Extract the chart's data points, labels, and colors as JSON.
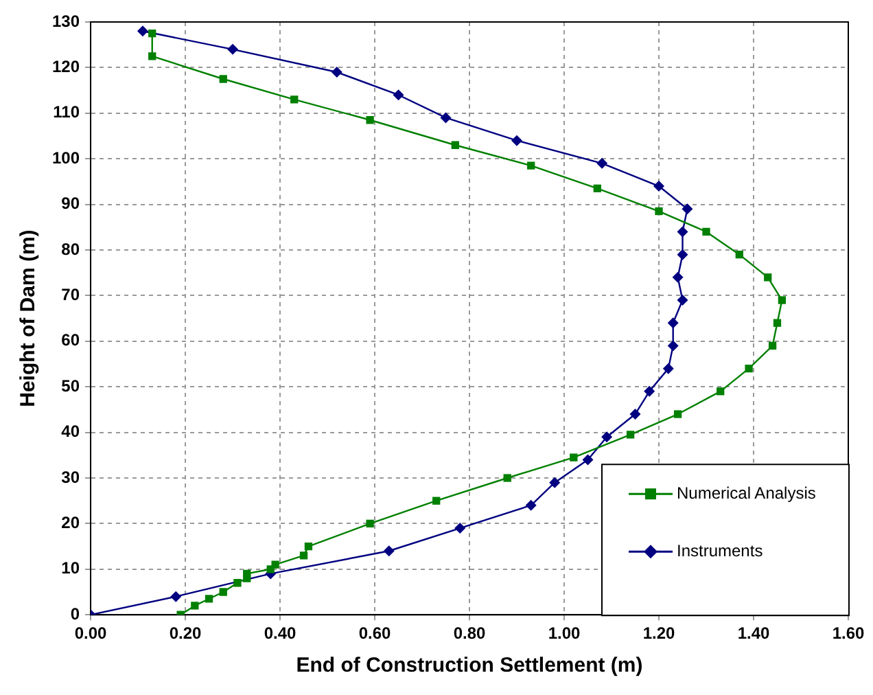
{
  "chart_data": {
    "type": "line",
    "xlabel": "End of Construction Settlement (m)",
    "ylabel": "Height of Dam (m)",
    "xlim": [
      0,
      1.6
    ],
    "xticks": [
      {
        "value": 0,
        "label": "0.00"
      },
      {
        "value": 0.2,
        "label": "0.20"
      },
      {
        "value": 0.4,
        "label": "0.40"
      },
      {
        "value": 0.6,
        "label": "0.60"
      },
      {
        "value": 0.8,
        "label": "0.80"
      },
      {
        "value": 1,
        "label": "1.00"
      },
      {
        "value": 1.2,
        "label": "1.20"
      },
      {
        "value": 1.4,
        "label": "1.40"
      },
      {
        "value": 1.6,
        "label": "1.60"
      }
    ],
    "ylim": [
      0,
      130
    ],
    "yticks": [
      0,
      10,
      20,
      30,
      40,
      50,
      60,
      70,
      80,
      90,
      100,
      110,
      120,
      130
    ],
    "grid": true,
    "legend": "bottom right",
    "line_style": "solid",
    "series": [
      {
        "name": "Numerical Analysis",
        "color": "#008000",
        "marker": "square",
        "x": [
          0.19,
          0.22,
          0.25,
          0.28,
          0.31,
          0.33,
          0.33,
          0.38,
          0.39,
          0.45,
          0.46,
          0.59,
          0.73,
          0.88,
          1.02,
          1.14,
          1.24,
          1.33,
          1.39,
          1.44,
          1.45,
          1.46,
          1.43,
          1.37,
          1.3,
          1.2,
          1.07,
          0.93,
          0.77,
          0.59,
          0.43,
          0.28,
          0.13,
          0.13
        ],
        "values": [
          0,
          2,
          3.5,
          5,
          7,
          8,
          9,
          10,
          11,
          13,
          15,
          20,
          25,
          30,
          34.5,
          39.5,
          44,
          49,
          54,
          59,
          64,
          69,
          74,
          79,
          84,
          88.5,
          93.5,
          98.5,
          103,
          108.5,
          113,
          117.5,
          122.5,
          127.5
        ]
      },
      {
        "name": "Instruments",
        "color": "#000080",
        "marker": "diamond",
        "x": [
          0,
          0.18,
          0.38,
          0.63,
          0.78,
          0.93,
          0.98,
          1.05,
          1.09,
          1.15,
          1.18,
          1.22,
          1.23,
          1.23,
          1.25,
          1.24,
          1.25,
          1.25,
          1.26,
          1.2,
          1.08,
          0.9,
          0.75,
          0.65,
          0.52,
          0.3,
          0.11
        ],
        "values": [
          0,
          4,
          9,
          14,
          19,
          24,
          29,
          34,
          39,
          44,
          49,
          54,
          59,
          64,
          69,
          74,
          79,
          84,
          89,
          94,
          99,
          104,
          109,
          114,
          119,
          124,
          128
        ]
      }
    ]
  }
}
